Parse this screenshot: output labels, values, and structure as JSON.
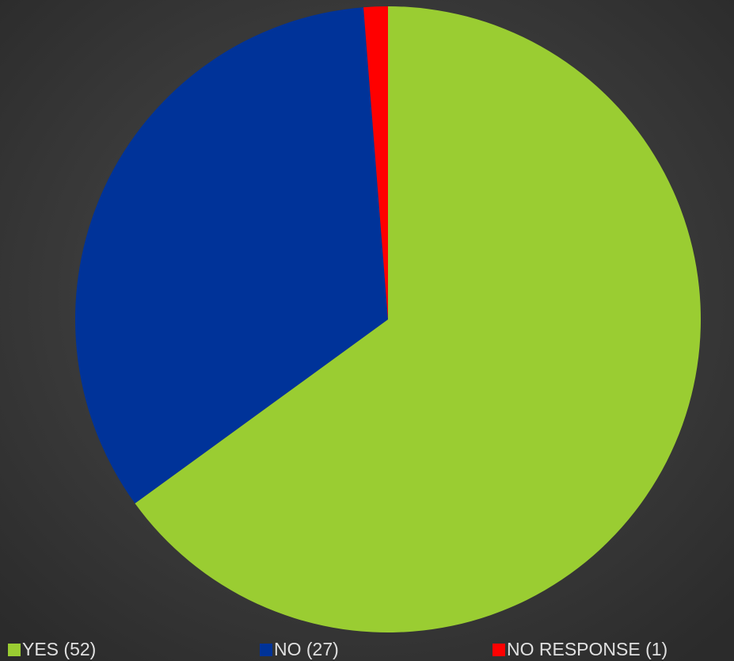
{
  "chart_data": {
    "type": "pie",
    "categories": [
      "YES (52)",
      "NO (27)",
      "NO RESPONSE (1)"
    ],
    "values": [
      52,
      27,
      1
    ],
    "colors": [
      "#9acd32",
      "#003399",
      "#ff0000"
    ],
    "start_angle": 0,
    "direction": "clockwise",
    "legend": "bottom"
  }
}
